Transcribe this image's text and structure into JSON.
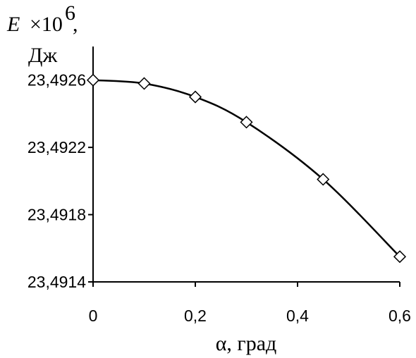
{
  "chart_data": {
    "type": "line",
    "y_label": [
      "E",
      "×10",
      "6",
      ","
    ],
    "y_unit": "Дж",
    "x_label": "α, град",
    "x": [
      0,
      0.1,
      0.2,
      0.3,
      0.45,
      0.6
    ],
    "series": [
      {
        "color": "#000000",
        "values": [
          23.4926,
          23.49258,
          23.4925,
          23.49235,
          23.49201,
          23.49155
        ]
      }
    ],
    "xlim": [
      0,
      0.6
    ],
    "xticks": [
      0,
      {
        "value": 0.2,
        "label": "0,2"
      },
      {
        "value": 0.4,
        "label": "0,4"
      },
      {
        "value": 0.6,
        "label": "0,6"
      }
    ],
    "ylim": [
      23.4914,
      23.4928
    ],
    "yticks": [
      {
        "value": 23.4914,
        "label": "23,4914"
      },
      {
        "value": 23.4918,
        "label": "23,4918"
      },
      {
        "value": 23.4922,
        "label": "23,4922"
      },
      {
        "value": 23.4926,
        "label": "23,4926"
      }
    ],
    "grid": false
  }
}
